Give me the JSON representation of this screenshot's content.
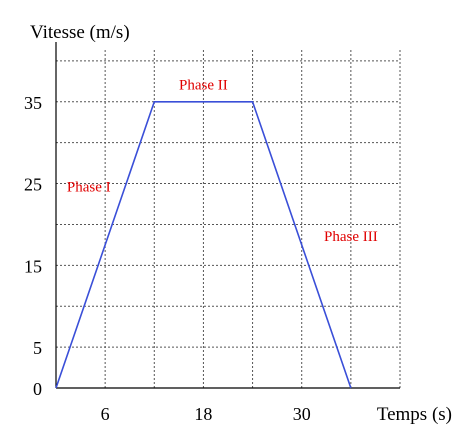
{
  "chart_data": {
    "type": "line",
    "ylabel": "Vitesse (m/s)",
    "xlabel": "Temps (s)",
    "x_ticks": [
      6,
      18,
      30
    ],
    "y_ticks": [
      0,
      5,
      15,
      25,
      35
    ],
    "x_grid": [
      0,
      6,
      12,
      18,
      24,
      30,
      36,
      42
    ],
    "y_grid": [
      0,
      5,
      10,
      15,
      20,
      25,
      30,
      35,
      40,
      45
    ],
    "xlim": [
      0,
      42
    ],
    "ylim": [
      0,
      45
    ],
    "grid": true,
    "series": [
      {
        "color": "#3a4fd8",
        "points": [
          {
            "x": 0,
            "y": 0
          },
          {
            "x": 12,
            "y": 35
          },
          {
            "x": 24,
            "y": 35
          },
          {
            "x": 36,
            "y": 0
          }
        ]
      }
    ],
    "annotations": [
      {
        "text": "Phase I",
        "x": 4,
        "y": 24
      },
      {
        "text": "Phase II",
        "x": 18,
        "y": 36.5
      },
      {
        "text": "Phase III",
        "x": 36,
        "y": 18
      },
      {
        "text": "Phase I",
        "x": 4,
        "y": 24
      }
    ]
  }
}
